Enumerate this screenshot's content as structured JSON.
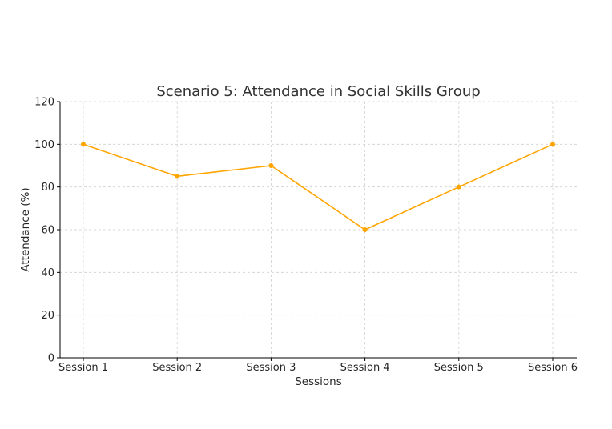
{
  "chart_data": {
    "type": "line",
    "title": "Scenario 5: Attendance in Social Skills Group",
    "xlabel": "Sessions",
    "ylabel": "Attendance (%)",
    "categories": [
      "Session 1",
      "Session 2",
      "Session 3",
      "Session 4",
      "Session 5",
      "Session 6"
    ],
    "series": [
      {
        "values": [
          100,
          85,
          90,
          60,
          80,
          100
        ],
        "color": "#FFA500",
        "marker": "circle"
      }
    ],
    "ylim": [
      0,
      120
    ],
    "yticks": [
      0,
      20,
      40,
      60,
      80,
      100,
      120
    ],
    "grid": true,
    "grid_style": "dashed",
    "legend": "none"
  }
}
